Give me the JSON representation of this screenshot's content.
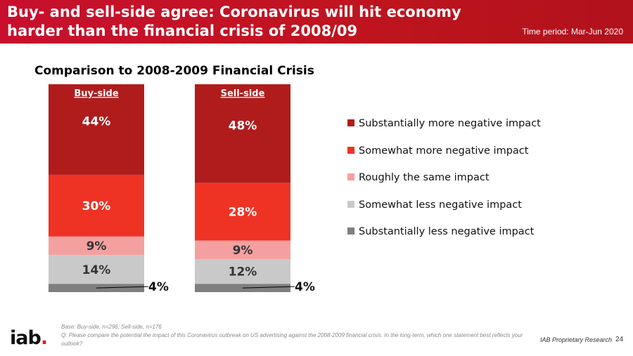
{
  "banner": {
    "title": "Buy- and sell-side agree:  Coronavirus will hit economy harder than the financial crisis of 2008/09",
    "period": "Time period: Mar-Jun 2020"
  },
  "chart_data": {
    "type": "bar",
    "stacked": true,
    "percent_stacked": true,
    "title": "Comparison to 2008-2009 Financial Crisis",
    "categories": [
      "Buy-side",
      "Sell-side"
    ],
    "series": [
      {
        "name": "Substantially more negative impact",
        "values": [
          44,
          48
        ],
        "color": "#b01c1c"
      },
      {
        "name": "Somewhat more negative impact",
        "values": [
          30,
          28
        ],
        "color": "#ee3325"
      },
      {
        "name": "Roughly the same impact",
        "values": [
          9,
          9
        ],
        "color": "#f5a0a0"
      },
      {
        "name": "Somewhat less negative impact",
        "values": [
          14,
          12
        ],
        "color": "#c9c9c9"
      },
      {
        "name": "Substantially less negative impact",
        "values": [
          4,
          4
        ],
        "color": "#7f7f7f"
      }
    ],
    "data_labels": [
      [
        "44%",
        "30%",
        "9%",
        "14%",
        "4%"
      ],
      [
        "48%",
        "28%",
        "9%",
        "12%",
        "4%"
      ]
    ],
    "legend_position": "right",
    "grid": false
  },
  "legend": [
    {
      "label": "Substantially more negative impact",
      "color": "#b01c1c"
    },
    {
      "label": "Somewhat more negative impact",
      "color": "#ee3325"
    },
    {
      "label": "Roughly the same impact",
      "color": "#f5a0a0"
    },
    {
      "label": "Somewhat less negative impact",
      "color": "#c9c9c9"
    },
    {
      "label": "Substantially less negative impact",
      "color": "#7f7f7f"
    }
  ],
  "footnote": {
    "base": "Base: Buy-side, n=296; Sell-side, n=176",
    "question": "Q: Please compare the potential the impact of this Coronavirus outbreak on US advertising against the 2008-2009 financial crisis. In the long-term, which one statement best reflects your outlook?"
  },
  "logo": {
    "text": "iab",
    "dot": "."
  },
  "footer": {
    "source": "IAB Proprietary Research",
    "page": "24"
  }
}
